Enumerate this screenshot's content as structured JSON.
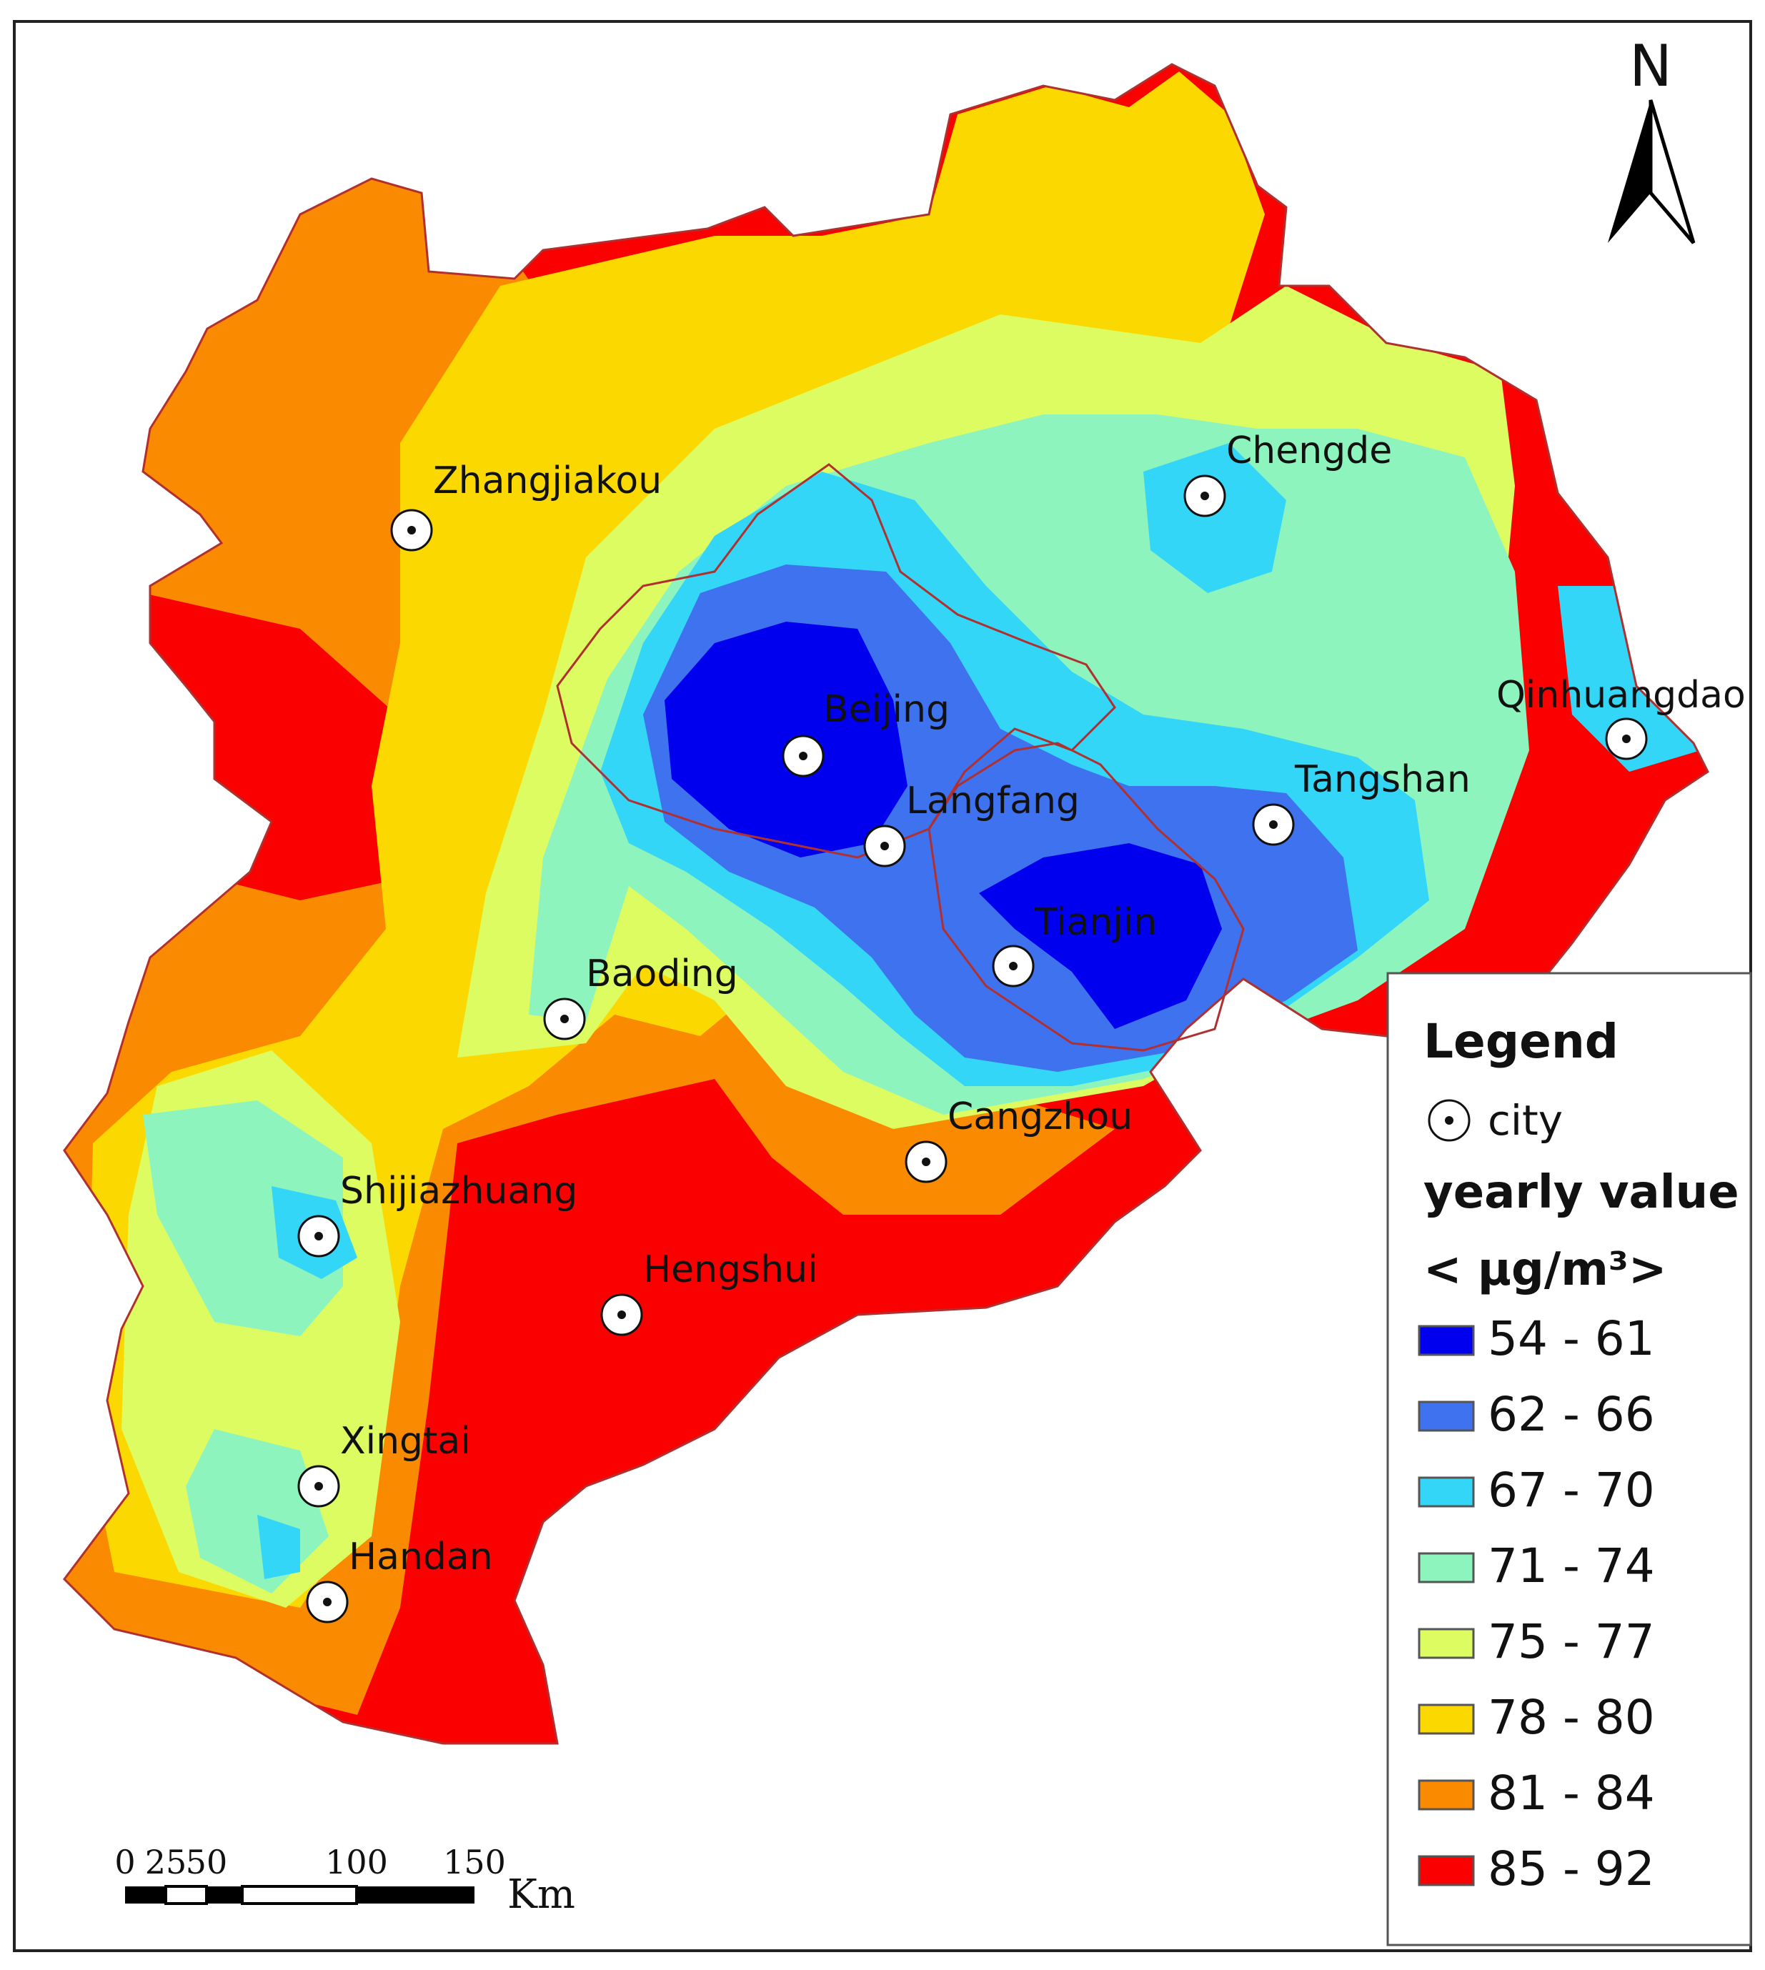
{
  "north": {
    "label": "N"
  },
  "legend": {
    "title": "Legend",
    "city_label": "city",
    "value_title": "yearly value",
    "unit": "< μg/m³>",
    "classes": [
      {
        "label": "54 - 61",
        "color": "#0000ee"
      },
      {
        "label": "62 - 66",
        "color": "#3f72ee"
      },
      {
        "label": "67 - 70",
        "color": "#33d6f6"
      },
      {
        "label": "71 - 74",
        "color": "#8ef4be"
      },
      {
        "label": "75 - 77",
        "color": "#dcfc62"
      },
      {
        "label": "78 - 80",
        "color": "#fbd900"
      },
      {
        "label": "81 - 84",
        "color": "#fa8a00"
      },
      {
        "label": "85 - 92",
        "color": "#fa0000"
      }
    ]
  },
  "cities": [
    {
      "name": "Zhangjiakou"
    },
    {
      "name": "Chengde"
    },
    {
      "name": "Beijing"
    },
    {
      "name": "Qinhuangdao"
    },
    {
      "name": "Langfang"
    },
    {
      "name": "Tangshan"
    },
    {
      "name": "Tianjin"
    },
    {
      "name": "Baoding"
    },
    {
      "name": "Cangzhou"
    },
    {
      "name": "Shijiazhuang"
    },
    {
      "name": "Hengshui"
    },
    {
      "name": "Xingtai"
    },
    {
      "name": "Handan"
    }
  ],
  "scale_bar": {
    "ticks": [
      "0",
      "25",
      "50",
      "100",
      "150"
    ],
    "unit": "Km"
  }
}
